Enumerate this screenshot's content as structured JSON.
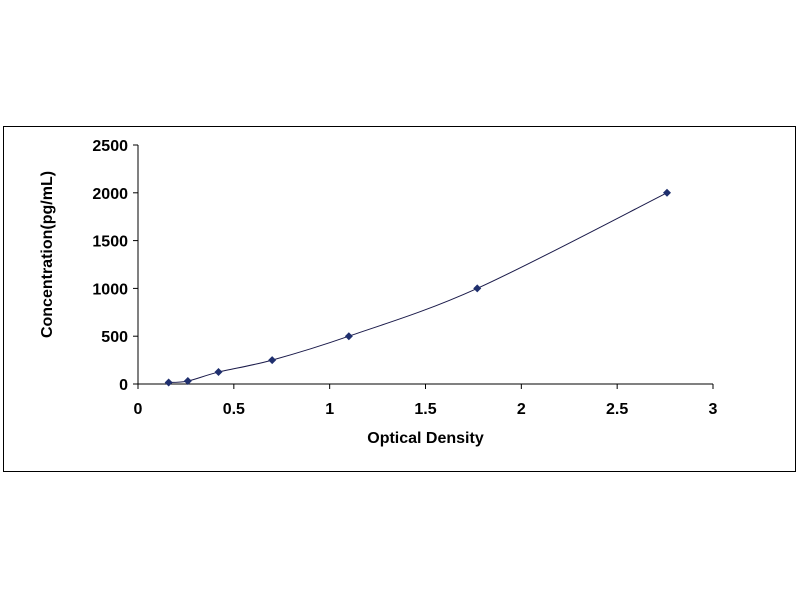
{
  "chart_data": {
    "type": "scatter",
    "title": "",
    "xlabel": "Optical Density",
    "ylabel": "Concentration(pg/mL)",
    "xlim": [
      0,
      3
    ],
    "ylim": [
      0,
      2500
    ],
    "x_ticks": [
      "0",
      "0.5",
      "1",
      "1.5",
      "2",
      "2.5",
      "3"
    ],
    "y_ticks": [
      "0",
      "500",
      "1000",
      "1500",
      "2000",
      "2500"
    ],
    "grid": false,
    "legend": "none",
    "series": [
      {
        "marker": "diamond",
        "trendline": "smooth curve",
        "color": "#1f2f6e",
        "line_color": "#1a1a4a",
        "points": [
          {
            "x": 0.16,
            "y": 15.6
          },
          {
            "x": 0.26,
            "y": 31.2
          },
          {
            "x": 0.42,
            "y": 125
          },
          {
            "x": 0.7,
            "y": 250
          },
          {
            "x": 1.1,
            "y": 500
          },
          {
            "x": 1.77,
            "y": 1000
          },
          {
            "x": 2.76,
            "y": 2000
          }
        ]
      }
    ]
  }
}
